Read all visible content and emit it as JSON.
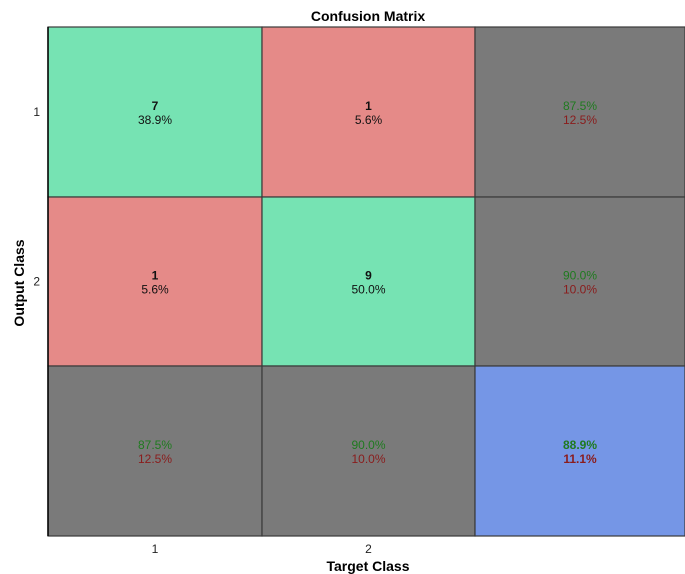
{
  "chart_data": {
    "type": "heatmap",
    "title": "Confusion Matrix",
    "xlabel": "Target Class",
    "ylabel": "Output Class",
    "x_ticks": [
      "1",
      "2"
    ],
    "y_ticks": [
      "1",
      "2"
    ],
    "matrix": [
      [
        {
          "count": "7",
          "percent": "38.9%"
        },
        {
          "count": "1",
          "percent": "5.6%"
        }
      ],
      [
        {
          "count": "1",
          "percent": "5.6%"
        },
        {
          "count": "9",
          "percent": "50.0%"
        }
      ]
    ],
    "row_summary": [
      {
        "correct": "87.5%",
        "incorrect": "12.5%"
      },
      {
        "correct": "90.0%",
        "incorrect": "10.0%"
      }
    ],
    "col_summary": [
      {
        "correct": "87.5%",
        "incorrect": "12.5%"
      },
      {
        "correct": "90.0%",
        "incorrect": "10.0%"
      }
    ],
    "overall": {
      "correct": "88.9%",
      "incorrect": "11.1%"
    },
    "colors": {
      "correct_cell": "#76e3b3",
      "incorrect_cell": "#e58a88",
      "summary_cell": "#7a7a7a",
      "overall_cell": "#7596e6",
      "correct_text": "#1f7a1f",
      "incorrect_text": "#8a1c1c",
      "grid_line": "#3a3a3a"
    }
  }
}
